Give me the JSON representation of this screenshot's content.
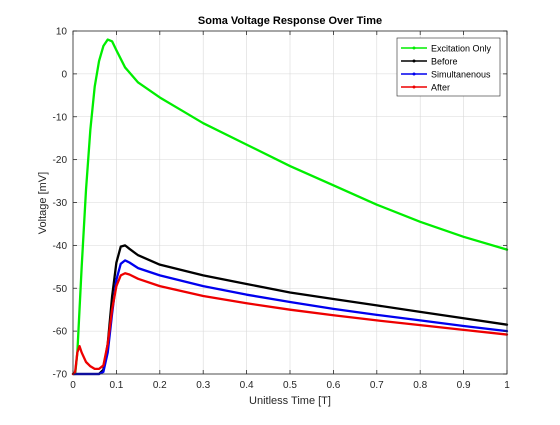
{
  "chart_data": {
    "type": "line",
    "title": "Soma Voltage Response Over Time",
    "xlabel": "Unitless Time [T]",
    "ylabel": "Voltage [mV]",
    "xlim": [
      0,
      1
    ],
    "ylim": [
      -70,
      10
    ],
    "xticks": [
      "0",
      "0.1",
      "0.2",
      "0.3",
      "0.4",
      "0.5",
      "0.6",
      "0.7",
      "0.8",
      "0.9",
      "1"
    ],
    "yticks": [
      "10",
      "0",
      "-10",
      "-20",
      "-30",
      "-40",
      "-50",
      "-60",
      "-70"
    ],
    "grid": true,
    "legend_position": "top-right",
    "series": [
      {
        "name": "Excitation Only",
        "color": "#00ee00",
        "points": [
          [
            0,
            -70
          ],
          [
            0.005,
            -70
          ],
          [
            0.01,
            -65
          ],
          [
            0.02,
            -45
          ],
          [
            0.03,
            -27
          ],
          [
            0.04,
            -13
          ],
          [
            0.05,
            -3
          ],
          [
            0.06,
            3
          ],
          [
            0.07,
            6.5
          ],
          [
            0.08,
            8
          ],
          [
            0.09,
            7.6
          ],
          [
            0.1,
            5.5
          ],
          [
            0.12,
            1.5
          ],
          [
            0.15,
            -2
          ],
          [
            0.2,
            -5.5
          ],
          [
            0.25,
            -8.5
          ],
          [
            0.3,
            -11.5
          ],
          [
            0.4,
            -16.5
          ],
          [
            0.5,
            -21.5
          ],
          [
            0.6,
            -26
          ],
          [
            0.7,
            -30.5
          ],
          [
            0.8,
            -34.5
          ],
          [
            0.9,
            -38
          ],
          [
            1.0,
            -41
          ]
        ]
      },
      {
        "name": "Before",
        "color": "#000000",
        "points": [
          [
            0,
            -70
          ],
          [
            0.01,
            -70
          ],
          [
            0.02,
            -70
          ],
          [
            0.06,
            -70
          ],
          [
            0.07,
            -69
          ],
          [
            0.08,
            -63
          ],
          [
            0.09,
            -52
          ],
          [
            0.1,
            -44
          ],
          [
            0.11,
            -40.3
          ],
          [
            0.12,
            -40
          ],
          [
            0.13,
            -40.8
          ],
          [
            0.15,
            -42.3
          ],
          [
            0.2,
            -44.5
          ],
          [
            0.3,
            -47
          ],
          [
            0.4,
            -49
          ],
          [
            0.5,
            -51
          ],
          [
            0.6,
            -52.5
          ],
          [
            0.7,
            -54
          ],
          [
            0.8,
            -55.5
          ],
          [
            0.9,
            -57
          ],
          [
            1.0,
            -58.5
          ]
        ]
      },
      {
        "name": "Simultanenous",
        "color": "#0000ee",
        "points": [
          [
            0,
            -70
          ],
          [
            0.01,
            -70
          ],
          [
            0.02,
            -70
          ],
          [
            0.06,
            -70
          ],
          [
            0.07,
            -69.5
          ],
          [
            0.08,
            -65
          ],
          [
            0.09,
            -56
          ],
          [
            0.1,
            -48
          ],
          [
            0.11,
            -44.3
          ],
          [
            0.12,
            -43.5
          ],
          [
            0.13,
            -44
          ],
          [
            0.15,
            -45.3
          ],
          [
            0.2,
            -47
          ],
          [
            0.3,
            -49.5
          ],
          [
            0.4,
            -51.5
          ],
          [
            0.5,
            -53.2
          ],
          [
            0.6,
            -54.8
          ],
          [
            0.7,
            -56.2
          ],
          [
            0.8,
            -57.5
          ],
          [
            0.9,
            -58.8
          ],
          [
            1.0,
            -60
          ]
        ]
      },
      {
        "name": "After",
        "color": "#ee0000",
        "points": [
          [
            0,
            -70
          ],
          [
            0.005,
            -69.5
          ],
          [
            0.01,
            -65
          ],
          [
            0.015,
            -63.5
          ],
          [
            0.02,
            -65
          ],
          [
            0.03,
            -67.2
          ],
          [
            0.04,
            -68.2
          ],
          [
            0.05,
            -68.8
          ],
          [
            0.06,
            -68.8
          ],
          [
            0.07,
            -68
          ],
          [
            0.08,
            -63
          ],
          [
            0.09,
            -55
          ],
          [
            0.1,
            -49.5
          ],
          [
            0.11,
            -47
          ],
          [
            0.12,
            -46.5
          ],
          [
            0.13,
            -46.8
          ],
          [
            0.15,
            -47.8
          ],
          [
            0.2,
            -49.5
          ],
          [
            0.3,
            -51.8
          ],
          [
            0.4,
            -53.5
          ],
          [
            0.5,
            -55
          ],
          [
            0.6,
            -56.3
          ],
          [
            0.7,
            -57.5
          ],
          [
            0.8,
            -58.6
          ],
          [
            0.9,
            -59.7
          ],
          [
            1.0,
            -60.8
          ]
        ]
      }
    ]
  }
}
